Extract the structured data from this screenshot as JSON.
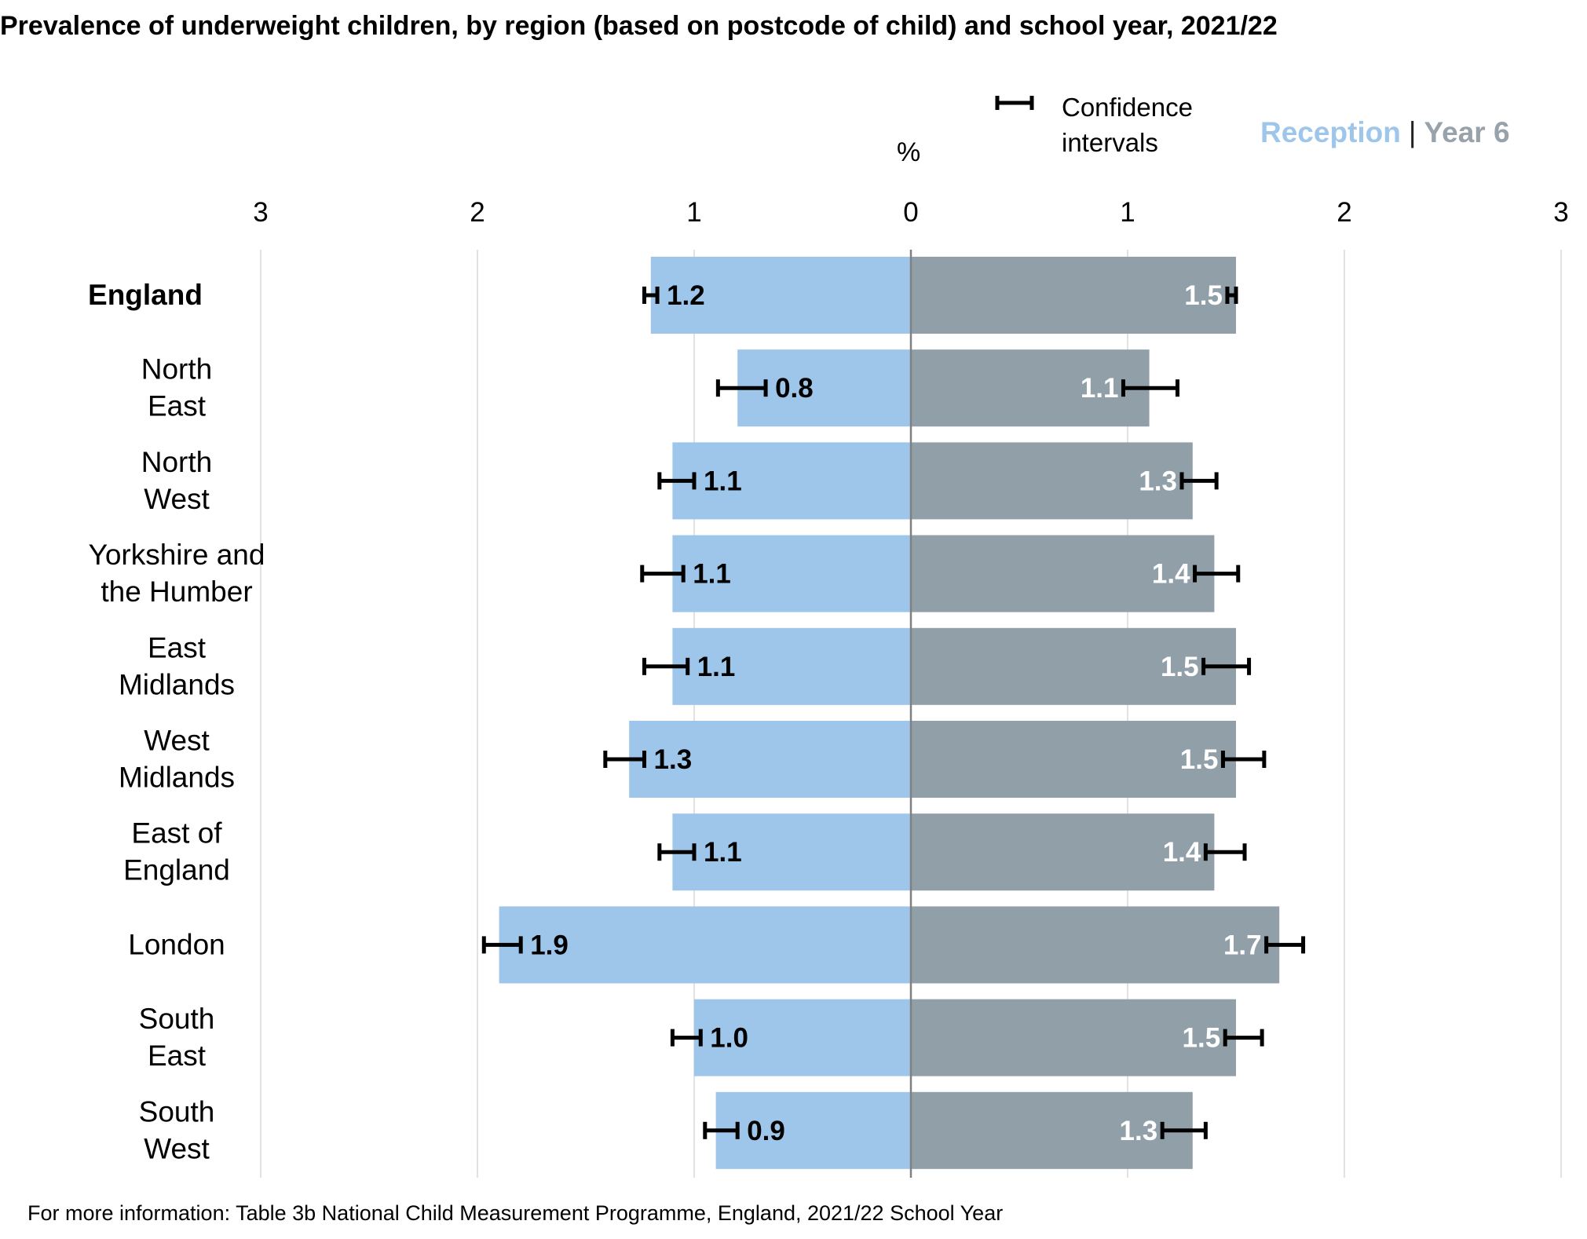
{
  "title": "Prevalence of underweight children, by region (based on postcode of child) and school year, 2021/22",
  "footer": "For more information: Table 3b National Child Measurement Programme, England, 2021/22 School Year",
  "unit_label": "%",
  "legend": {
    "ci_label": "Confidence intervals",
    "series": [
      "Reception",
      "Year 6"
    ],
    "separator": "|"
  },
  "colors": {
    "reception": "#9dc6ea",
    "year6": "#919fa8",
    "error_bar": "#000000",
    "axis": "#808080",
    "grid": "#d9d9d9"
  },
  "chart_data": {
    "type": "bar",
    "orientation": "horizontal-butterfly",
    "categories": [
      "England",
      "North East",
      "North West",
      "Yorkshire and the Humber",
      "East Midlands",
      "West Midlands",
      "East of England",
      "London",
      "South East",
      "South West"
    ],
    "category_lines": [
      [
        "England"
      ],
      [
        "North",
        "East"
      ],
      [
        "North",
        "West"
      ],
      [
        "Yorkshire and",
        "the Humber"
      ],
      [
        "East",
        "Midlands"
      ],
      [
        "West",
        "Midlands"
      ],
      [
        "East of",
        "England"
      ],
      [
        "London"
      ],
      [
        "South",
        "East"
      ],
      [
        "South",
        "West"
      ]
    ],
    "bold_categories": [
      "England"
    ],
    "xlim": [
      -3,
      3
    ],
    "xticks": [
      -3,
      -2,
      -1,
      0,
      1,
      2,
      3
    ],
    "xtick_labels": [
      "3",
      "2",
      "1",
      "0",
      "1",
      "2",
      "3"
    ],
    "grid": true,
    "series": [
      {
        "name": "Reception",
        "side": "left",
        "values": [
          1.2,
          0.8,
          1.1,
          1.1,
          1.1,
          1.3,
          1.1,
          1.9,
          1.0,
          0.9
        ],
        "labels": [
          "1.2",
          "0.8",
          "1.1",
          "1.1",
          "1.1",
          "1.3",
          "1.1",
          "1.9",
          "1.0",
          "0.9"
        ],
        "ci_low": [
          1.17,
          0.67,
          1.0,
          1.05,
          1.03,
          1.23,
          1.0,
          1.8,
          0.97,
          0.8
        ],
        "ci_high": [
          1.23,
          0.89,
          1.16,
          1.24,
          1.23,
          1.41,
          1.16,
          1.97,
          1.1,
          0.95
        ]
      },
      {
        "name": "Year 6",
        "side": "right",
        "values": [
          1.5,
          1.1,
          1.3,
          1.4,
          1.5,
          1.5,
          1.4,
          1.7,
          1.5,
          1.3
        ],
        "labels": [
          "1.5",
          "1.1",
          "1.3",
          "1.4",
          "1.5",
          "1.5",
          "1.4",
          "1.7",
          "1.5",
          "1.3"
        ],
        "ci_low": [
          1.46,
          0.98,
          1.25,
          1.31,
          1.35,
          1.44,
          1.36,
          1.64,
          1.45,
          1.16
        ],
        "ci_high": [
          1.5,
          1.23,
          1.41,
          1.51,
          1.56,
          1.63,
          1.54,
          1.81,
          1.62,
          1.36
        ]
      }
    ]
  }
}
